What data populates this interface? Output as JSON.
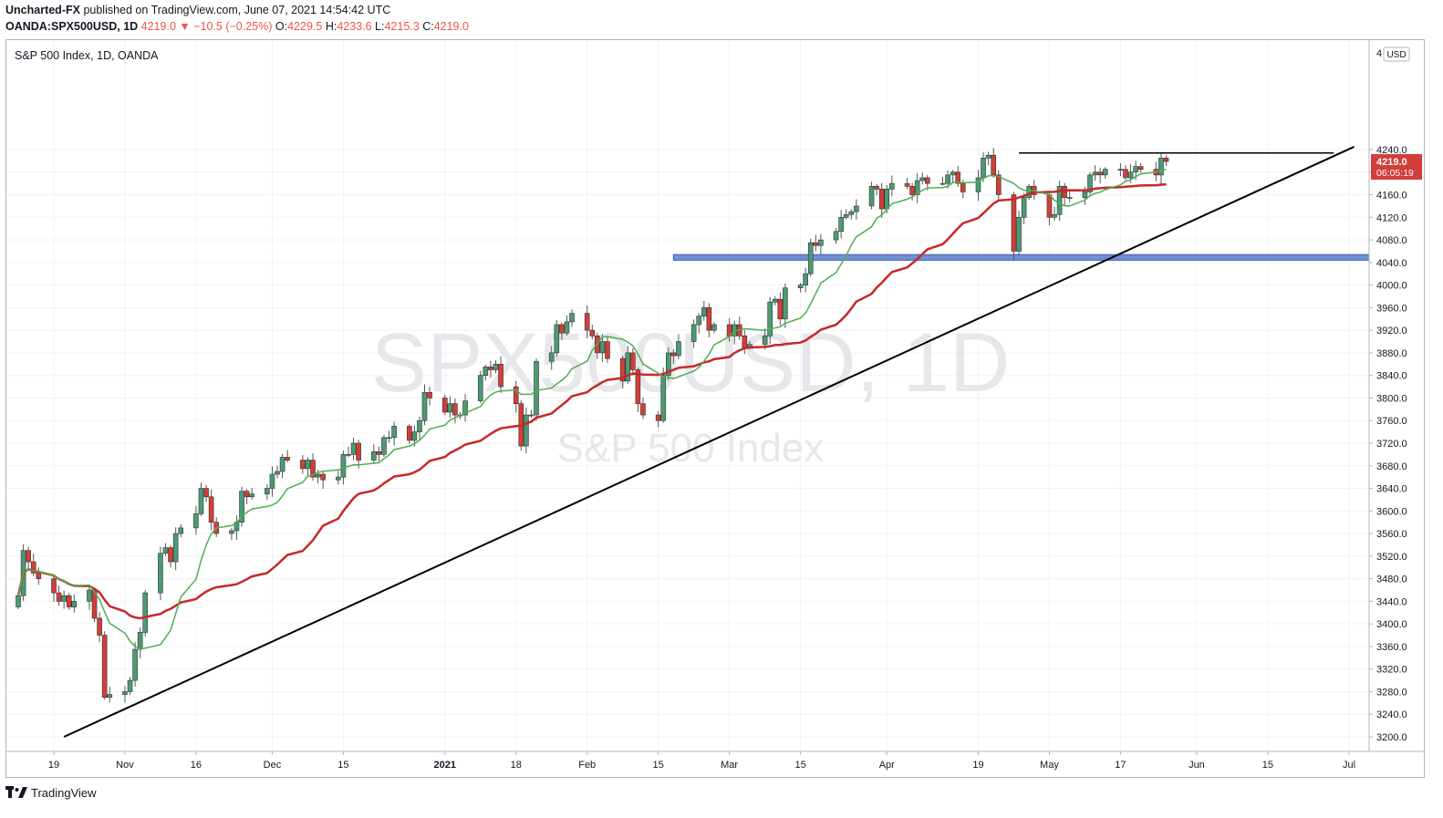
{
  "header": {
    "author": "Uncharted-FX",
    "published_text": "published on TradingView.com, June 07, 2021 14:54:42 UTC",
    "symbol": "OANDA:SPX500USD, 1D",
    "last": "4219.0",
    "change": "▼ −10.5 (−0.25%)",
    "o_label": "O:",
    "o_value": "4229.5",
    "h_label": "H:",
    "h_value": "4233.6",
    "l_label": "L:",
    "l_value": "4215.3",
    "c_label": "C:",
    "c_value": "4219.0"
  },
  "legend": "S&P 500 Index, 1D, OANDA",
  "watermark": {
    "line1": "SPX500USD, 1D",
    "line2": "S&P 500 Index"
  },
  "currency_badge": "USD",
  "price_label": {
    "price": "4219.0",
    "countdown": "06:05:19"
  },
  "footer": {
    "brand": "TradingView"
  },
  "colors": {
    "up": "#26a69a",
    "down": "#ef5350",
    "up_body": "#4c9a73",
    "down_body": "#d23e39",
    "ma_fast": "#4caf50",
    "ma_slow": "#c62828",
    "zone": "#6f8fd6",
    "line": "#000000"
  },
  "chart_data": {
    "type": "candlestick",
    "y_ticks": [
      3200,
      3240,
      3280,
      3320,
      3360,
      3400,
      3440,
      3480,
      3520,
      3560,
      3600,
      3640,
      3680,
      3720,
      3760,
      3800,
      3840,
      3880,
      3920,
      3960,
      4000,
      4040,
      4080,
      4120,
      4160,
      4200,
      4240
    ],
    "y_tick_partial": "4",
    "x_ticks": [
      {
        "label": "19",
        "date": "2020-10-19"
      },
      {
        "label": "Nov",
        "date": "2020-11-02"
      },
      {
        "label": "16",
        "date": "2020-11-16"
      },
      {
        "label": "Dec",
        "date": "2020-12-01"
      },
      {
        "label": "15",
        "date": "2020-12-15"
      },
      {
        "label": "2021",
        "date": "2021-01-04"
      },
      {
        "label": "18",
        "date": "2021-01-18"
      },
      {
        "label": "Feb",
        "date": "2021-02-01"
      },
      {
        "label": "15",
        "date": "2021-02-15"
      },
      {
        "label": "Mar",
        "date": "2021-03-01"
      },
      {
        "label": "15",
        "date": "2021-03-15"
      },
      {
        "label": "Apr",
        "date": "2021-04-01"
      },
      {
        "label": "19",
        "date": "2021-04-19"
      },
      {
        "label": "May",
        "date": "2021-05-03"
      },
      {
        "label": "17",
        "date": "2021-05-17"
      },
      {
        "label": "Jun",
        "date": "2021-06-01"
      },
      {
        "label": "15",
        "date": "2021-06-15"
      },
      {
        "label": "Jul",
        "date": "2021-07-01"
      }
    ],
    "closes": [
      3450,
      3530,
      3510,
      3490,
      3480,
      3455,
      3440,
      3450,
      3430,
      3440,
      3460,
      3410,
      3380,
      3270,
      3275,
      3280,
      3300,
      3355,
      3385,
      3455,
      3525,
      3535,
      3510,
      3560,
      3570,
      3595,
      3640,
      3625,
      3580,
      3560,
      3565,
      3580,
      3635,
      3625,
      3630,
      3640,
      3665,
      3670,
      3695,
      3690,
      3675,
      3690,
      3660,
      3665,
      3655,
      3660,
      3700,
      3700,
      3720,
      3690,
      3705,
      3700,
      3730,
      3730,
      3750,
      3725,
      3740,
      3760,
      3810,
      3800,
      3775,
      3790,
      3770,
      3770,
      3795,
      3840,
      3855,
      3850,
      3860,
      3820,
      3790,
      3715,
      3770,
      3770,
      3865,
      3880,
      3930,
      3915,
      3935,
      3950,
      3920,
      3910,
      3880,
      3900,
      3870,
      3830,
      3880,
      3850,
      3790,
      3770,
      3760,
      3840,
      3880,
      3875,
      3900,
      3930,
      3945,
      3960,
      3920,
      3930,
      3910,
      3930,
      3910,
      3890,
      3895,
      3910,
      3970,
      3975,
      3940,
      3995,
      4000,
      4020,
      4075,
      4070,
      4080,
      4095,
      4120,
      4125,
      4130,
      4140,
      4175,
      4170,
      4135,
      4170,
      4180,
      4175,
      4160,
      4185,
      4190,
      4180,
      4180,
      4195,
      4200,
      4180,
      4165,
      4190,
      4225,
      4230,
      4195,
      4160,
      4060,
      4120,
      4155,
      4175,
      4160,
      4120,
      4125,
      4175,
      4155,
      4155,
      4165,
      4195,
      4200,
      4195,
      4205,
      4205,
      4190,
      4200,
      4210,
      4205,
      4195,
      4225,
      4219
    ],
    "ma_fast": {
      "period": 10
    },
    "ma_slow": {
      "period": 30
    },
    "support_zone": {
      "from_price": 4044,
      "to_price": 4054,
      "start": "2021-02-18"
    },
    "resistance_line": {
      "price": 4234,
      "start": "2021-04-27",
      "end": "2021-06-28"
    },
    "trendline": {
      "from": {
        "date": "2020-10-21",
        "price": 3200
      },
      "to": {
        "date": "2021-07-02",
        "price": 4245
      }
    },
    "last_price": 4219.0,
    "last_date": "2021-06-07"
  }
}
